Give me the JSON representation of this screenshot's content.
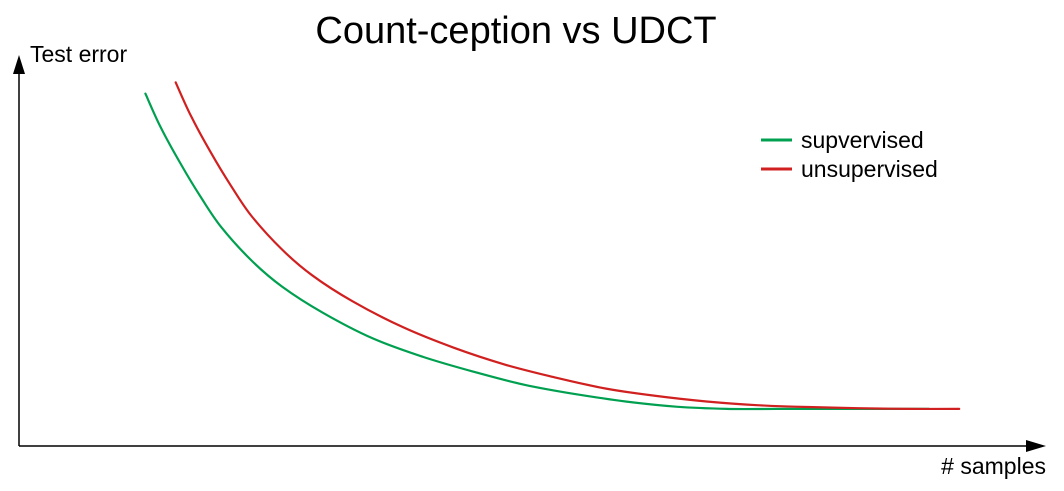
{
  "chart_data": {
    "type": "line",
    "title": "Count-ception vs UDCT",
    "xlabel": "# samples",
    "ylabel": "Test error",
    "x_ticks": "none",
    "y_ticks": "none",
    "grid": false,
    "legend": {
      "placement": "top-right"
    },
    "xlim": [
      0,
      100
    ],
    "ylim": [
      0,
      100
    ],
    "series": [
      {
        "name": "supvervised",
        "color": "#00a050",
        "x": [
          12.5,
          14,
          16,
          18,
          20,
          23,
          26,
          30,
          35,
          40,
          45,
          50,
          55,
          60,
          65,
          70,
          75,
          80,
          85,
          90
        ],
        "y": [
          95,
          86,
          76,
          67,
          59,
          50,
          43,
          36,
          29,
          24,
          20,
          16.5,
          14,
          12,
          10.6,
          10,
          10,
          10,
          10,
          10
        ]
      },
      {
        "name": "unsupervised",
        "color": "#d02020",
        "x": [
          15.5,
          17,
          19,
          21,
          23,
          26,
          29,
          33,
          38,
          43,
          48,
          53,
          58,
          63,
          68,
          73,
          78,
          83,
          88,
          93
        ],
        "y": [
          98,
          89,
          79,
          70,
          62,
          53,
          46,
          39,
          32,
          26.5,
          22,
          18.5,
          15.5,
          13.5,
          12,
          11,
          10.5,
          10.2,
          10,
          10
        ]
      }
    ]
  }
}
